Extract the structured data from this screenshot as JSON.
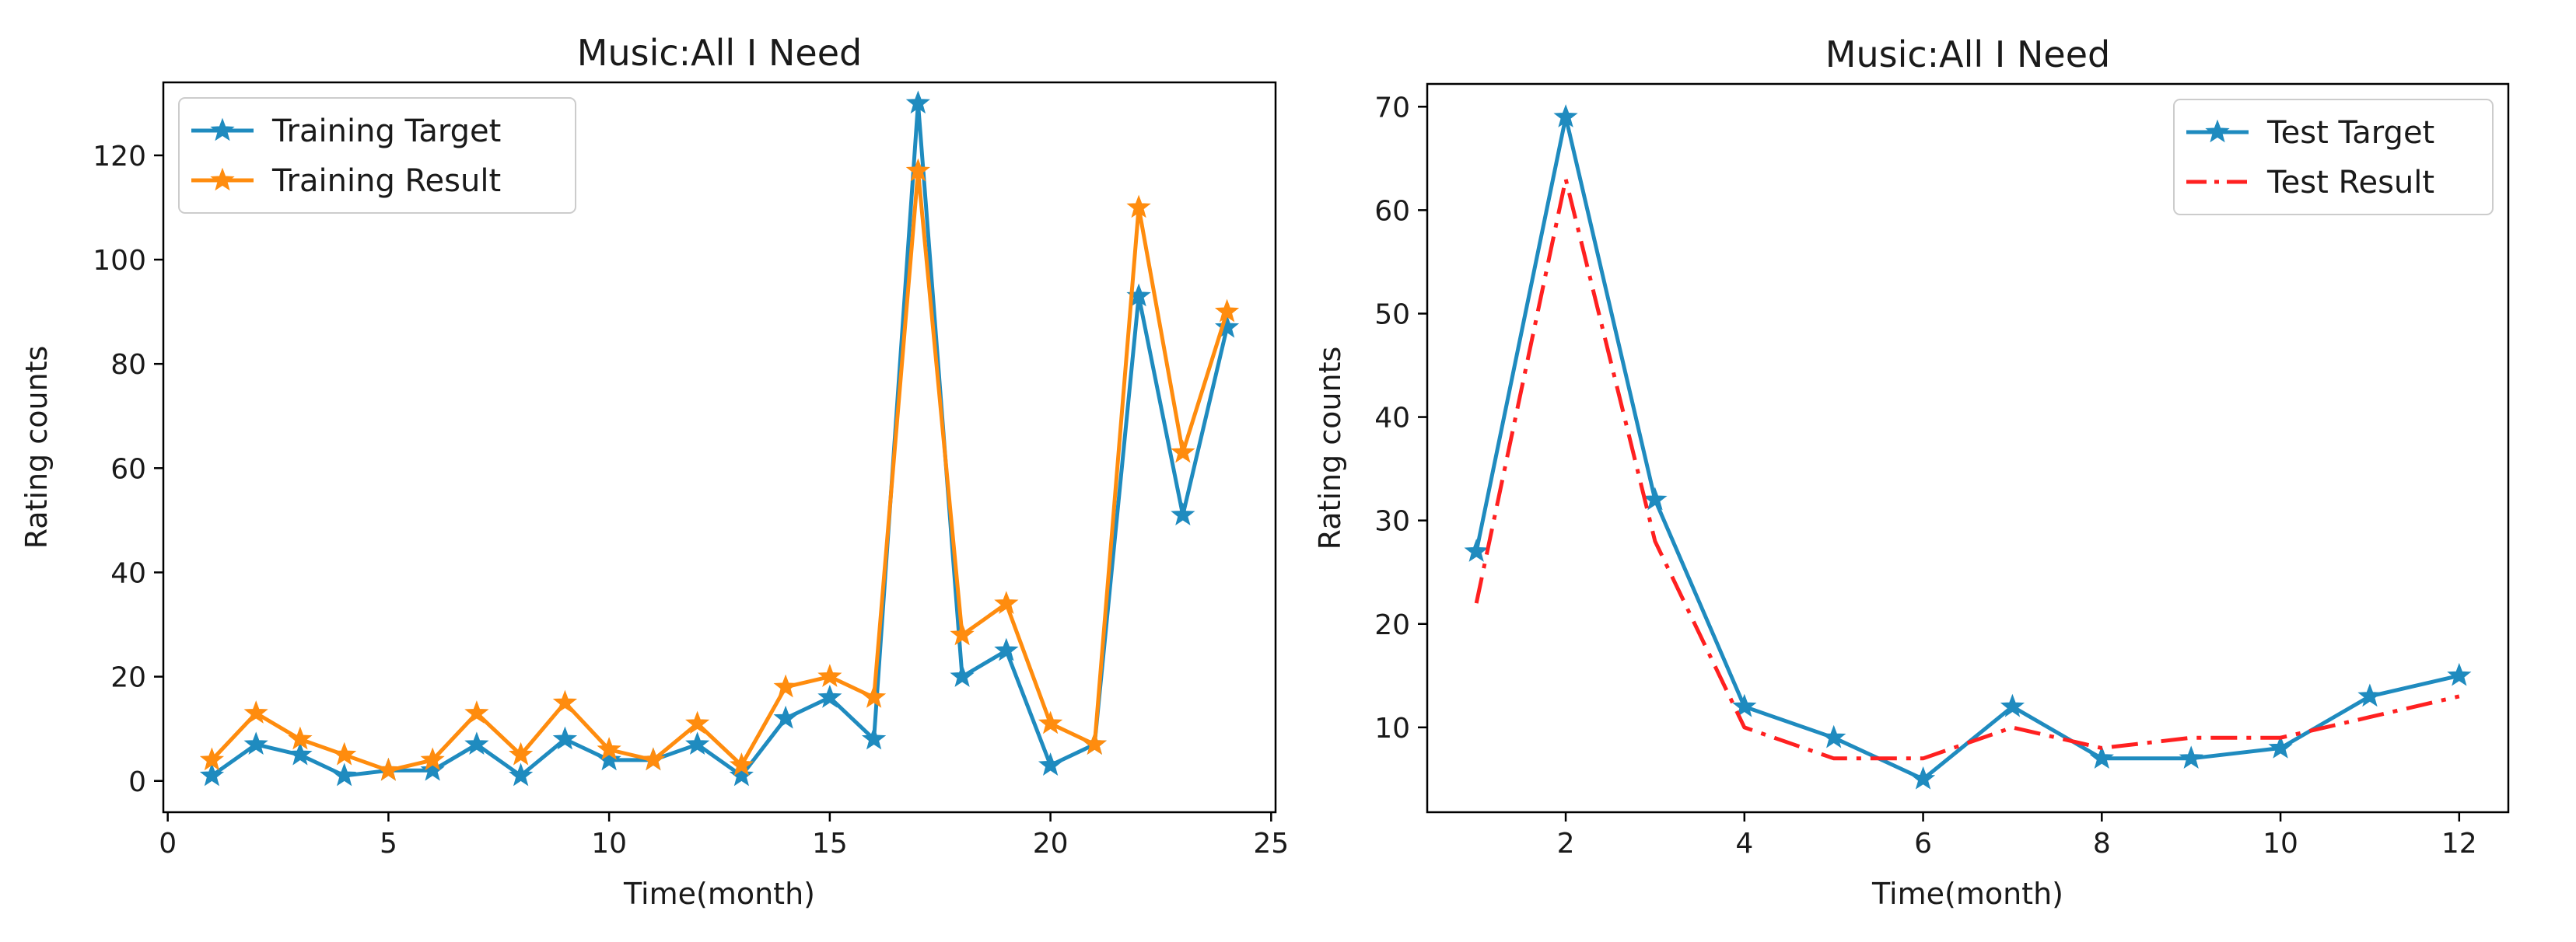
{
  "chart_data": [
    {
      "type": "line",
      "title": "Music:All I Need",
      "xlabel": "Time(month)",
      "ylabel": "Rating counts",
      "xlim": [
        -0.1,
        25.1
      ],
      "ylim": [
        -6,
        134
      ],
      "xticks": [
        0,
        5,
        10,
        15,
        20,
        25
      ],
      "yticks": [
        0,
        20,
        40,
        60,
        80,
        100,
        120
      ],
      "legend_position": "top-left",
      "grid": false,
      "series": [
        {
          "name": "Training Target",
          "color": "#1f8bbf",
          "style": "solid",
          "marker": "star",
          "x": [
            1,
            2,
            3,
            4,
            5,
            6,
            7,
            8,
            9,
            10,
            11,
            12,
            13,
            14,
            15,
            16,
            17,
            18,
            19,
            20,
            21,
            22,
            23,
            24
          ],
          "y": [
            1,
            7,
            5,
            1,
            2,
            2,
            7,
            1,
            8,
            4,
            4,
            7,
            1,
            12,
            16,
            8,
            130,
            20,
            25,
            3,
            7,
            93,
            51,
            87
          ]
        },
        {
          "name": "Training Result",
          "color": "#ff8c0e",
          "style": "solid",
          "marker": "star",
          "x": [
            1,
            2,
            3,
            4,
            5,
            6,
            7,
            8,
            9,
            10,
            11,
            12,
            13,
            14,
            15,
            16,
            17,
            18,
            19,
            20,
            21,
            22,
            23,
            24
          ],
          "y": [
            4,
            13,
            8,
            5,
            2,
            4,
            13,
            5,
            15,
            6,
            4,
            11,
            3,
            18,
            20,
            16,
            117,
            28,
            34,
            11,
            7,
            110,
            63,
            90
          ]
        }
      ]
    },
    {
      "type": "line",
      "title": "Music:All I Need",
      "xlabel": "Time(month)",
      "ylabel": "Rating counts",
      "xlim": [
        0.45,
        12.55
      ],
      "ylim": [
        1.8,
        72.2
      ],
      "xticks": [
        2,
        4,
        6,
        8,
        10,
        12
      ],
      "yticks": [
        10,
        20,
        30,
        40,
        50,
        60,
        70
      ],
      "legend_position": "top-right",
      "grid": false,
      "series": [
        {
          "name": "Test Target",
          "color": "#1f8bbf",
          "style": "solid",
          "marker": "star",
          "x": [
            1,
            2,
            3,
            4,
            5,
            6,
            7,
            8,
            9,
            10,
            11,
            12
          ],
          "y": [
            27,
            69,
            32,
            12,
            9,
            5,
            12,
            7,
            7,
            8,
            13,
            15
          ]
        },
        {
          "name": "Test Result",
          "color": "#ff2020",
          "style": "dashdot",
          "marker": "none",
          "x": [
            1,
            2,
            3,
            4,
            5,
            6,
            7,
            8,
            9,
            10,
            11,
            12
          ],
          "y": [
            22,
            63,
            28,
            10,
            7,
            7,
            10,
            8,
            9,
            9,
            11,
            13
          ]
        }
      ]
    }
  ]
}
